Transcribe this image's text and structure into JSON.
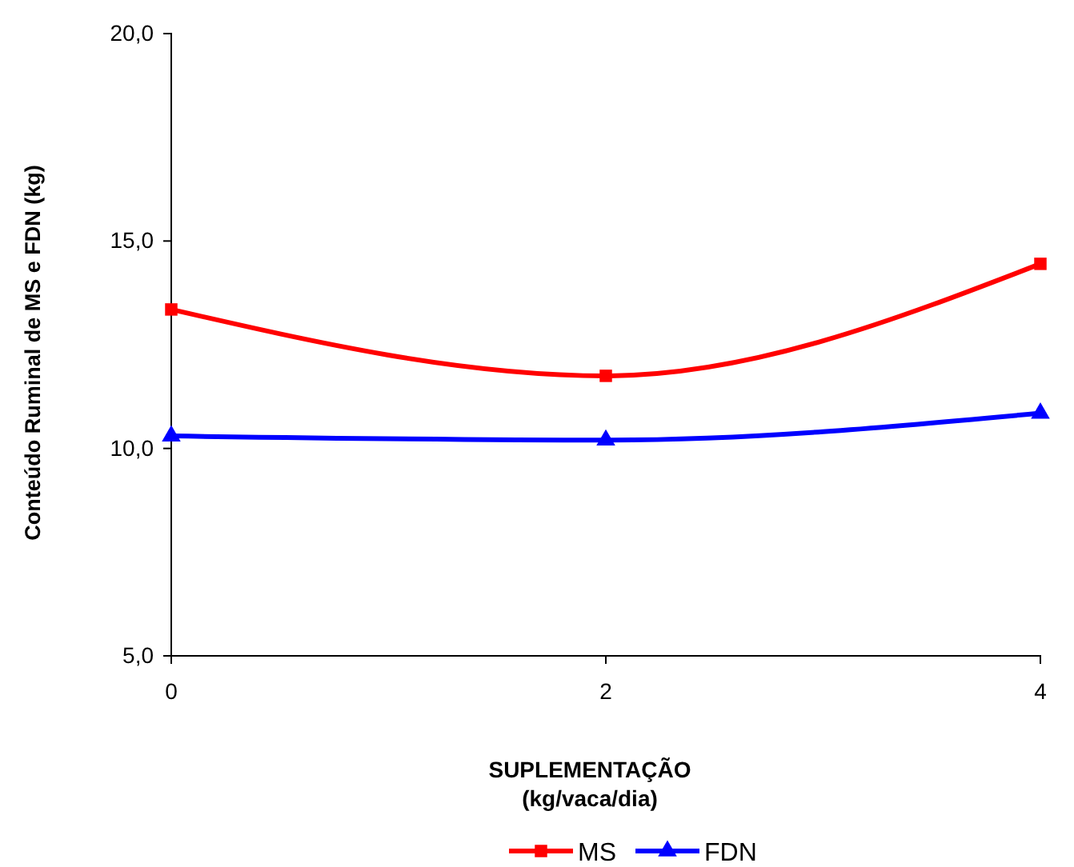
{
  "chart_data": {
    "type": "line",
    "xlabel": "SUPLEMENTAÇÃO\n(kg/vaca/dia)",
    "ylabel": "Conteúdo Ruminal de MS e FDN (kg)",
    "x": [
      0,
      2,
      4
    ],
    "xlim": [
      0,
      4
    ],
    "xticks": [
      0,
      2,
      4
    ],
    "ylim": [
      5,
      20
    ],
    "yticks": [
      {
        "value": 5,
        "label": "5,0"
      },
      {
        "value": 10,
        "label": "10,0"
      },
      {
        "value": 15,
        "label": "15,0"
      },
      {
        "value": 20,
        "label": "20,0"
      }
    ],
    "series": [
      {
        "name": "MS",
        "color": "#ff0000",
        "values": [
          13.35,
          11.75,
          14.45
        ],
        "marker": "square"
      },
      {
        "name": "FDN",
        "color": "#0000ff",
        "values": [
          10.3,
          10.2,
          10.85
        ],
        "marker": "triangle"
      }
    ],
    "legend": "bottom",
    "grid": false
  }
}
